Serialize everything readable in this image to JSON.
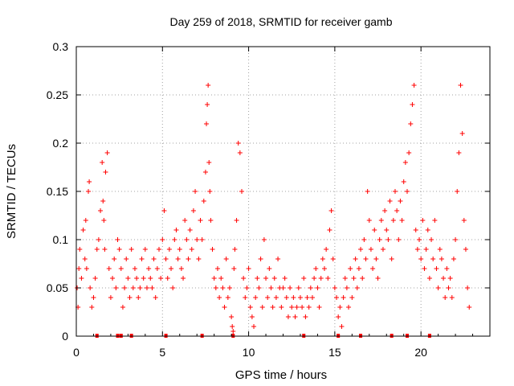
{
  "chart_data": {
    "type": "scatter",
    "title": "Day 259 of 2018, SRMTID for receiver gamb",
    "xlabel": "GPS time / hours",
    "ylabel": "SRMTID / TECUs",
    "xlim": [
      0,
      24
    ],
    "ylim": [
      0,
      0.3
    ],
    "x_ticks": [
      0,
      5,
      10,
      15,
      20
    ],
    "x_tick_labels": [
      "0",
      "5",
      "10",
      "15",
      "20"
    ],
    "y_ticks": [
      0,
      0.05,
      0.1,
      0.15,
      0.2,
      0.25,
      0.3
    ],
    "y_tick_labels": [
      "0",
      "0.05",
      "0.1",
      "0.15",
      "0.2",
      "0.25",
      "0.3"
    ],
    "grid": true,
    "legend": "none",
    "marker": "+",
    "color": "#ff0000",
    "baseline_hours": [
      1.2,
      2.4,
      2.6,
      3.2,
      5.2,
      7.3,
      9.1,
      13.2,
      15.2,
      16.5,
      18.3,
      19.2,
      20.5
    ],
    "series": [
      {
        "name": "SRMTID",
        "x": [
          0.05,
          0.1,
          0.15,
          0.2,
          0.3,
          0.4,
          0.5,
          0.55,
          0.6,
          0.7,
          0.75,
          0.8,
          0.9,
          1.0,
          1.1,
          1.2,
          1.3,
          1.4,
          1.5,
          1.55,
          1.6,
          1.65,
          1.7,
          1.8,
          1.9,
          2.0,
          2.1,
          2.2,
          2.3,
          2.4,
          2.5,
          2.6,
          2.7,
          2.8,
          2.9,
          3.0,
          3.1,
          3.2,
          3.3,
          3.4,
          3.5,
          3.6,
          3.7,
          3.8,
          3.9,
          4.0,
          4.1,
          4.2,
          4.3,
          4.4,
          4.5,
          4.6,
          4.7,
          4.8,
          4.9,
          5.0,
          5.1,
          5.2,
          5.3,
          5.4,
          5.5,
          5.6,
          5.7,
          5.8,
          5.9,
          6.0,
          6.1,
          6.2,
          6.3,
          6.4,
          6.5,
          6.6,
          6.7,
          6.8,
          6.9,
          7.0,
          7.1,
          7.2,
          7.3,
          7.4,
          7.5,
          7.55,
          7.6,
          7.65,
          7.7,
          7.75,
          7.8,
          7.9,
          8.0,
          8.1,
          8.2,
          8.3,
          8.4,
          8.5,
          8.6,
          8.7,
          8.8,
          8.9,
          9.0,
          9.05,
          9.1,
          9.15,
          9.2,
          9.3,
          9.4,
          9.5,
          9.6,
          9.7,
          9.8,
          9.9,
          10.0,
          10.1,
          10.2,
          10.3,
          10.4,
          10.5,
          10.6,
          10.7,
          10.8,
          10.9,
          11.0,
          11.1,
          11.2,
          11.3,
          11.4,
          11.5,
          11.6,
          11.7,
          11.8,
          11.9,
          12.0,
          12.1,
          12.2,
          12.3,
          12.4,
          12.5,
          12.6,
          12.7,
          12.8,
          12.9,
          13.0,
          13.1,
          13.2,
          13.3,
          13.4,
          13.5,
          13.6,
          13.7,
          13.8,
          13.9,
          14.0,
          14.1,
          14.2,
          14.3,
          14.4,
          14.5,
          14.6,
          14.7,
          14.8,
          14.9,
          15.0,
          15.1,
          15.2,
          15.3,
          15.4,
          15.5,
          15.6,
          15.7,
          15.8,
          15.9,
          16.0,
          16.1,
          16.2,
          16.3,
          16.4,
          16.5,
          16.6,
          16.7,
          16.8,
          16.9,
          17.0,
          17.1,
          17.2,
          17.3,
          17.4,
          17.5,
          17.6,
          17.7,
          17.8,
          17.9,
          18.0,
          18.1,
          18.2,
          18.3,
          18.4,
          18.5,
          18.6,
          18.7,
          18.8,
          18.9,
          19.0,
          19.1,
          19.2,
          19.3,
          19.4,
          19.5,
          19.6,
          19.7,
          19.8,
          19.9,
          20.0,
          20.1,
          20.2,
          20.3,
          20.4,
          20.5,
          20.6,
          20.7,
          20.8,
          20.9,
          21.0,
          21.1,
          21.2,
          21.3,
          21.4,
          21.5,
          21.6,
          21.7,
          21.8,
          21.9,
          22.0,
          22.1,
          22.2,
          22.3,
          22.4,
          22.5,
          22.6,
          22.7,
          22.8
        ],
        "y": [
          0.05,
          0.03,
          0.07,
          0.09,
          0.06,
          0.11,
          0.08,
          0.12,
          0.07,
          0.15,
          0.16,
          0.05,
          0.03,
          0.04,
          0.06,
          0.09,
          0.1,
          0.13,
          0.18,
          0.14,
          0.12,
          0.09,
          0.17,
          0.19,
          0.07,
          0.04,
          0.06,
          0.08,
          0.05,
          0.1,
          0.09,
          0.07,
          0.03,
          0.05,
          0.08,
          0.06,
          0.04,
          0.09,
          0.05,
          0.07,
          0.06,
          0.04,
          0.05,
          0.08,
          0.06,
          0.09,
          0.05,
          0.07,
          0.06,
          0.05,
          0.08,
          0.04,
          0.07,
          0.09,
          0.06,
          0.1,
          0.13,
          0.08,
          0.06,
          0.09,
          0.07,
          0.05,
          0.1,
          0.11,
          0.08,
          0.09,
          0.07,
          0.06,
          0.12,
          0.1,
          0.08,
          0.11,
          0.09,
          0.13,
          0.15,
          0.1,
          0.08,
          0.12,
          0.1,
          0.14,
          0.17,
          0.22,
          0.24,
          0.26,
          0.18,
          0.15,
          0.12,
          0.09,
          0.06,
          0.05,
          0.07,
          0.04,
          0.06,
          0.05,
          0.03,
          0.08,
          0.04,
          0.05,
          0.02,
          0.01,
          0.005,
          0.07,
          0.09,
          0.12,
          0.2,
          0.19,
          0.15,
          0.06,
          0.04,
          0.05,
          0.07,
          0.03,
          0.02,
          0.01,
          0.04,
          0.06,
          0.05,
          0.08,
          0.03,
          0.1,
          0.06,
          0.04,
          0.07,
          0.05,
          0.03,
          0.06,
          0.04,
          0.08,
          0.05,
          0.03,
          0.05,
          0.06,
          0.04,
          0.02,
          0.05,
          0.03,
          0.04,
          0.02,
          0.03,
          0.05,
          0.04,
          0.03,
          0.06,
          0.02,
          0.04,
          0.03,
          0.05,
          0.04,
          0.06,
          0.07,
          0.05,
          0.03,
          0.06,
          0.08,
          0.07,
          0.09,
          0.06,
          0.11,
          0.13,
          0.08,
          0.05,
          0.04,
          0.02,
          0.03,
          0.01,
          0.04,
          0.06,
          0.05,
          0.03,
          0.07,
          0.04,
          0.06,
          0.08,
          0.05,
          0.07,
          0.09,
          0.06,
          0.1,
          0.08,
          0.15,
          0.12,
          0.09,
          0.07,
          0.11,
          0.08,
          0.06,
          0.1,
          0.12,
          0.09,
          0.13,
          0.11,
          0.1,
          0.14,
          0.08,
          0.12,
          0.15,
          0.13,
          0.1,
          0.14,
          0.12,
          0.16,
          0.18,
          0.15,
          0.19,
          0.22,
          0.24,
          0.26,
          0.11,
          0.09,
          0.1,
          0.08,
          0.12,
          0.07,
          0.09,
          0.11,
          0.06,
          0.1,
          0.08,
          0.12,
          0.07,
          0.05,
          0.09,
          0.08,
          0.06,
          0.04,
          0.07,
          0.05,
          0.06,
          0.04,
          0.08,
          0.1,
          0.15,
          0.19,
          0.26,
          0.21,
          0.12,
          0.09,
          0.05,
          0.03
        ]
      }
    ]
  }
}
